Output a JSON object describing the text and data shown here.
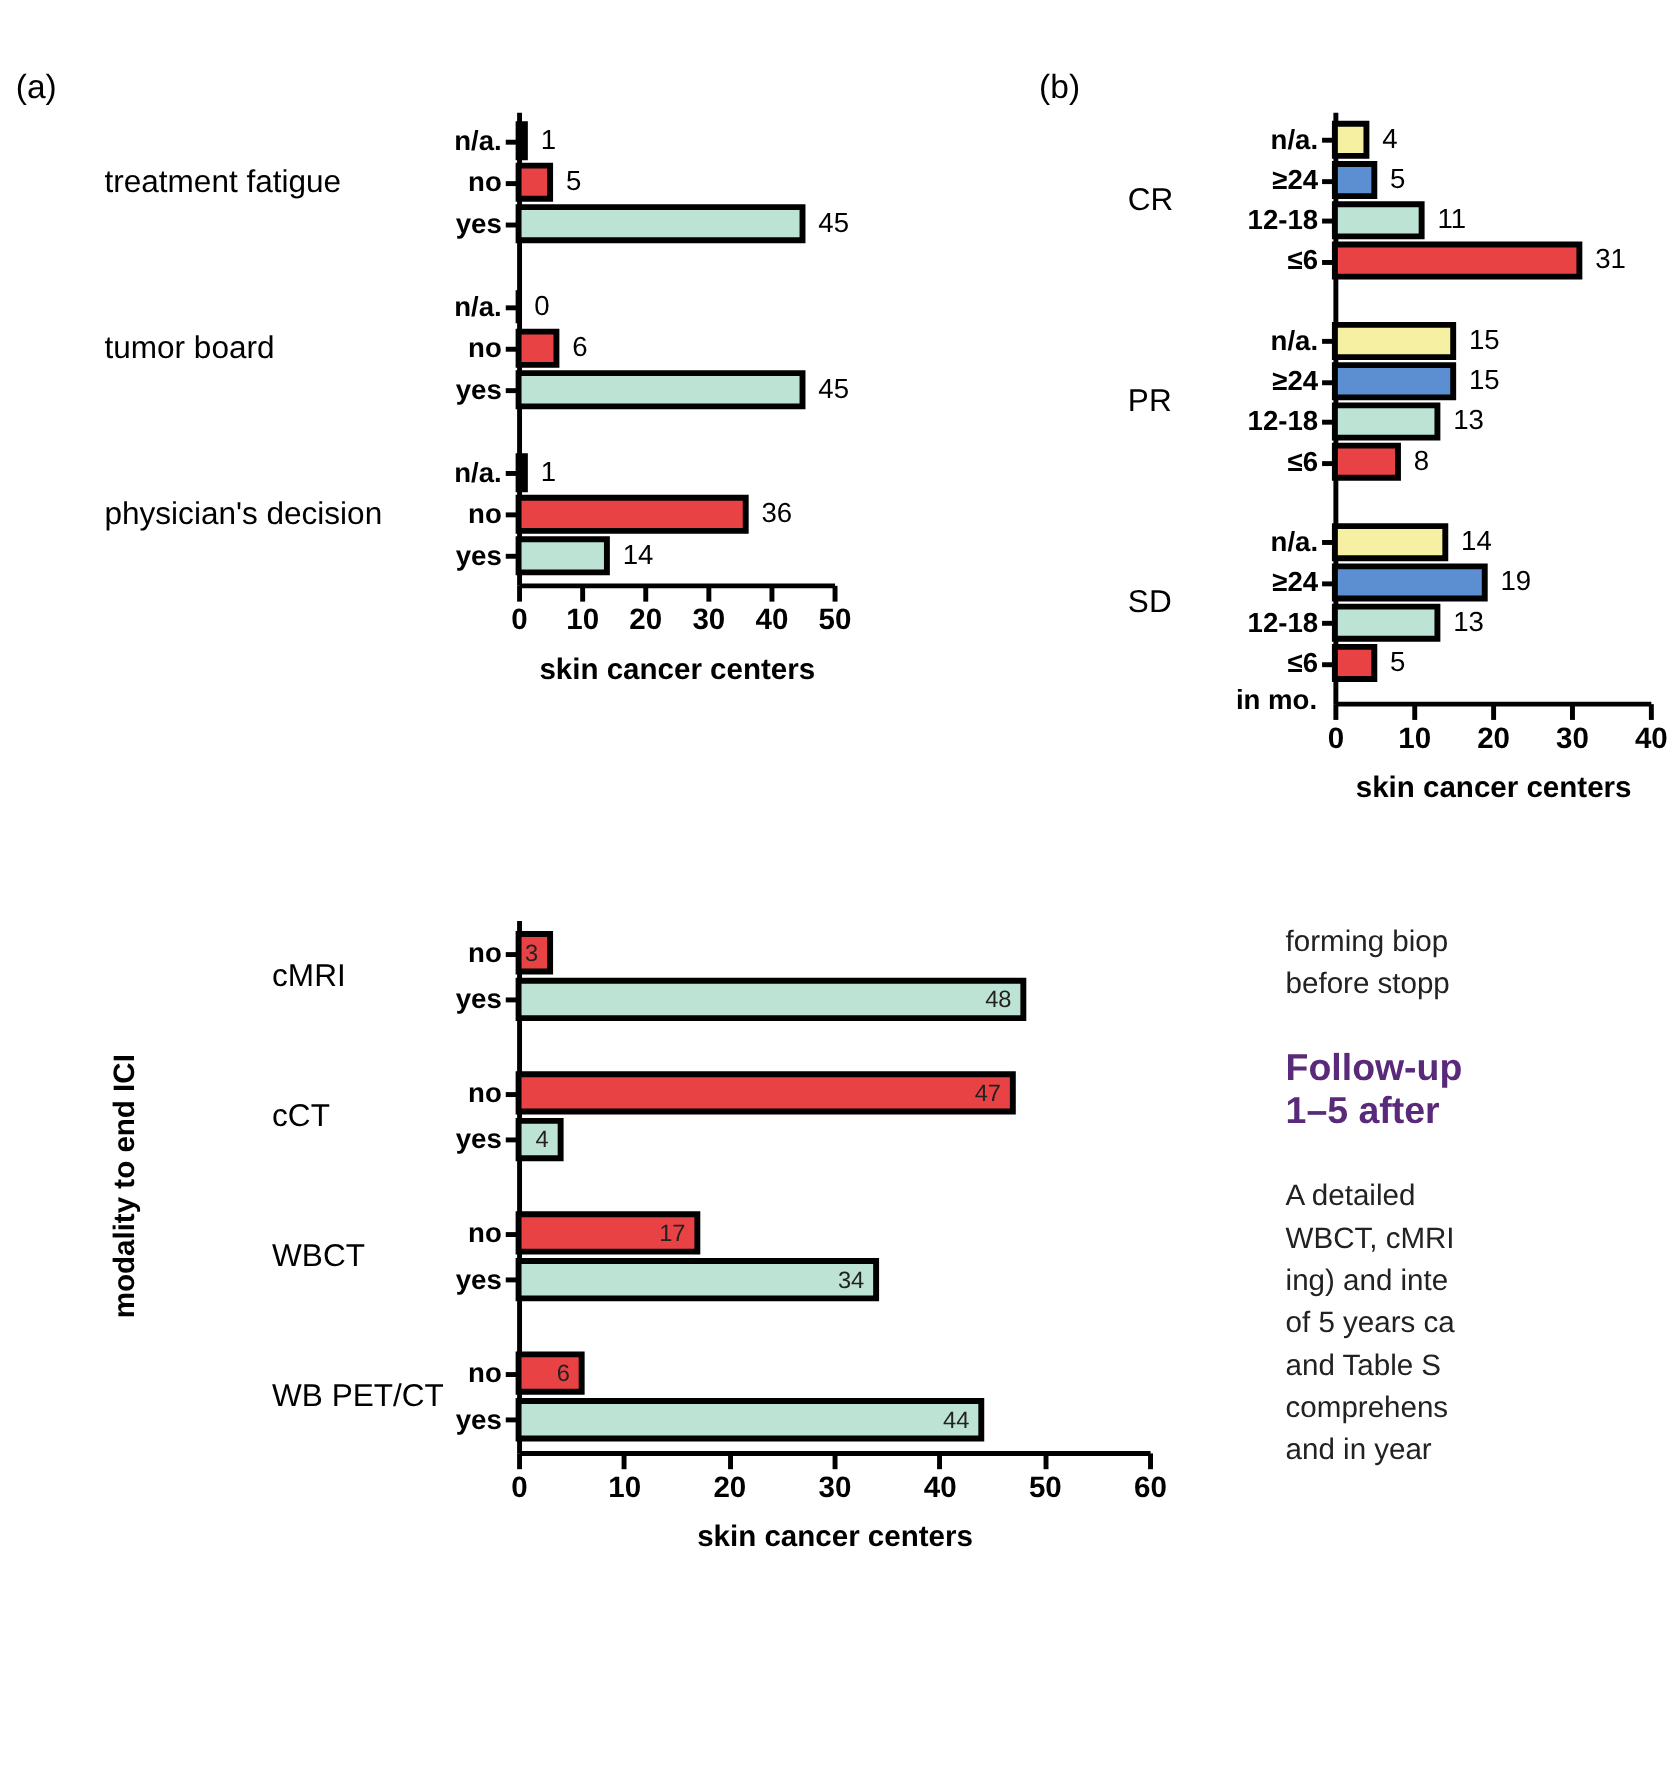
{
  "chart_data": [
    {
      "type": "bar",
      "orientation": "horizontal",
      "title": "(a)",
      "xlabel": "skin cancer centers",
      "categories": [
        "treatment fatigue",
        "tumor board",
        "physician's decision"
      ],
      "series": [
        {
          "name": "n/a.",
          "color": "#000000",
          "values": [
            1,
            0,
            1
          ]
        },
        {
          "name": "no",
          "color": "#e94245",
          "values": [
            5,
            6,
            36
          ]
        },
        {
          "name": "yes",
          "color": "#bce3d4",
          "values": [
            45,
            45,
            14
          ]
        }
      ],
      "xlim": [
        0,
        50
      ],
      "xticks": [
        0,
        10,
        20,
        30,
        40,
        50
      ],
      "data_labels": true,
      "grid": false,
      "legend": "left"
    },
    {
      "type": "bar",
      "orientation": "horizontal",
      "title": "(b)",
      "xlabel": "skin cancer centers",
      "categories": [
        "CR",
        "PR",
        "SD"
      ],
      "series": [
        {
          "name": "n/a.",
          "color": "#f6f0a2",
          "values": [
            4,
            15,
            14
          ]
        },
        {
          "name": "≥24",
          "color": "#5b8fd2",
          "values": [
            5,
            15,
            19
          ]
        },
        {
          "name": "12-18",
          "color": "#bce3d4",
          "values": [
            11,
            13,
            13
          ]
        },
        {
          "name": "≤6",
          "color": "#e94245",
          "values": [
            31,
            8,
            5
          ]
        }
      ],
      "annotations": [
        "in mo."
      ],
      "xlim": [
        0,
        40
      ],
      "xticks": [
        0,
        10,
        20,
        30,
        40
      ],
      "data_labels": true,
      "grid": false,
      "legend": "left"
    },
    {
      "type": "bar",
      "orientation": "horizontal",
      "xlabel": "skin cancer centers",
      "ylabel": "modality to end ICI",
      "categories": [
        "cMRI",
        "cCT",
        "WBCT",
        "WB PET/CT"
      ],
      "series": [
        {
          "name": "no",
          "color": "#e94245",
          "values": [
            3,
            47,
            17,
            6
          ]
        },
        {
          "name": "yes",
          "color": "#bce3d4",
          "values": [
            48,
            4,
            34,
            44
          ]
        }
      ],
      "xlim": [
        0,
        60
      ],
      "xticks": [
        0,
        10,
        20,
        30,
        40,
        50,
        60
      ],
      "data_labels": true,
      "grid": false,
      "legend": "left"
    },
    {
      "type": "other",
      "title": "Follow-up\n1–5 after",
      "annotations": [
        "forming biop",
        "before stopp",
        "A detailed",
        "WBCT, cMRI",
        "ing) and inte",
        "of 5 years ca",
        "and Table S",
        "comprehens",
        "and in year"
      ]
    }
  ]
}
